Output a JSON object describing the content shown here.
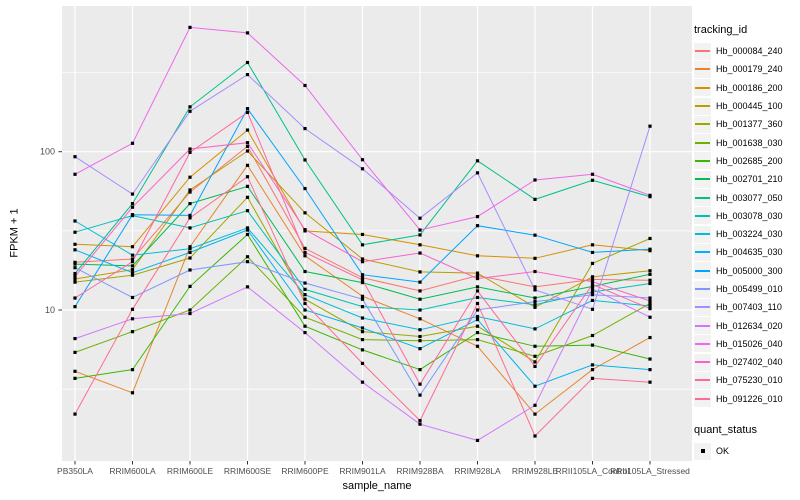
{
  "figure": {
    "x_axis": {
      "title": "sample_name"
    },
    "y_axis": {
      "title": "FPKM + 1",
      "tick_labels": [
        "100",
        "10"
      ],
      "tick_values": [
        100,
        10
      ]
    },
    "legend": {
      "color_title": "tracking_id",
      "shape_title": "quant_status",
      "shape_items": [
        {
          "label": "OK",
          "shape": "filled-square",
          "color": "#000000"
        }
      ]
    }
  },
  "chart_data": {
    "type": "line",
    "title": "",
    "xlabel": "sample_name",
    "ylabel": "FPKM + 1",
    "yscale": "log10",
    "ylim": [
      1.3,
      700
    ],
    "grid": "on",
    "legend_position": "right",
    "point_shape": "filled-square",
    "point_color": "#000000",
    "panel_background": "#EBEBEB",
    "grid_color": "#FFFFFF",
    "tick_label_color": "#4D4D4D",
    "major_gridlines": [
      10,
      100
    ],
    "minor_gridlines": [
      3.162,
      31.62,
      316.23
    ],
    "x_categories": [
      "PB350LA",
      "RRIM600LA",
      "RRIM600LE",
      "RRIM600SE",
      "RRIM600PE",
      "RRIM901LA",
      "RRIM928BA",
      "RRIM928LA",
      "RRIM928LE",
      "RRII105LA_Control",
      "RRII105LA_Stressed"
    ],
    "series": [
      {
        "name": "Hb_000084_240",
        "color": "#F8766D",
        "values": [
          20,
          21,
          55.6,
          108,
          24.5,
          16,
          13.2,
          16.5,
          14,
          15.6,
          15.4
        ]
      },
      {
        "name": "Hb_000179_240",
        "color": "#E9842C",
        "values": [
          4.1,
          3.0,
          25.1,
          82,
          22,
          12.2,
          8.8,
          5.9,
          2.2,
          4.2,
          6.7
        ]
      },
      {
        "name": "Hb_000186_200",
        "color": "#D69100",
        "values": [
          26,
          25.1,
          69,
          137,
          31.6,
          30,
          25.8,
          22,
          21.2,
          25.8,
          23.7
        ]
      },
      {
        "name": "Hb_000445_100",
        "color": "#BB9D00",
        "values": [
          15.7,
          18,
          57.3,
          101,
          41.1,
          21,
          17.4,
          17.1,
          10.4,
          16.2,
          17.7
        ]
      },
      {
        "name": "Hb_001377_360",
        "color": "#9DA700",
        "values": [
          15,
          16.6,
          21.3,
          51.5,
          11.7,
          7.3,
          6.8,
          7.9,
          4.7,
          19.7,
          28.3
        ]
      },
      {
        "name": "Hb_001638_030",
        "color": "#6FB000",
        "values": [
          5.4,
          7.3,
          10,
          21.7,
          9,
          6.5,
          6.4,
          6.5,
          5.1,
          6.9,
          11
        ]
      },
      {
        "name": "Hb_002685_200",
        "color": "#39B600",
        "values": [
          3.7,
          4.2,
          14.1,
          30,
          7.9,
          5.6,
          4.2,
          7.2,
          5.9,
          6,
          4.9
        ]
      },
      {
        "name": "Hb_002701_210",
        "color": "#00BC51",
        "values": [
          19.5,
          19,
          47,
          60.4,
          17.5,
          14.9,
          11.7,
          14,
          11.9,
          14.1,
          16.8
        ]
      },
      {
        "name": "Hb_003077_050",
        "color": "#00C08B",
        "values": [
          17,
          47,
          192,
          366,
          88.7,
          25.8,
          29.8,
          87.6,
          50,
          66,
          52
        ]
      },
      {
        "name": "Hb_003078_030",
        "color": "#00C0B5",
        "values": [
          31,
          39.5,
          33,
          42.4,
          13.5,
          10.5,
          10,
          12,
          10.8,
          13,
          14.7
        ]
      },
      {
        "name": "Hb_003224_030",
        "color": "#00BCD8",
        "values": [
          36.5,
          22.2,
          24.4,
          33,
          12.5,
          8.9,
          7.5,
          9.1,
          7.6,
          11.5,
          10.6
        ]
      },
      {
        "name": "Hb_004635_030",
        "color": "#00B3F2",
        "values": [
          24,
          17.2,
          23.1,
          32,
          10,
          7.7,
          5.7,
          8.7,
          3.3,
          4.5,
          4.2
        ]
      },
      {
        "name": "Hb_005000_300",
        "color": "#00A3FF",
        "values": [
          10.5,
          40,
          39.6,
          187,
          58.5,
          16.7,
          15,
          34.1,
          29.7,
          23.1,
          24.2
        ]
      },
      {
        "name": "Hb_005499_010",
        "color": "#7F96FF",
        "values": [
          18.5,
          12,
          17.9,
          20.2,
          14.8,
          11.7,
          2.9,
          10,
          11.3,
          12.5,
          11.9
        ]
      },
      {
        "name": "Hb_007403_110",
        "color": "#A98BFF",
        "values": [
          93,
          54,
          180,
          307,
          140,
          78,
          38,
          73.5,
          13.4,
          10.1,
          145
        ]
      },
      {
        "name": "Hb_012634_020",
        "color": "#D177FE",
        "values": [
          6.6,
          8.8,
          9.5,
          14,
          7.2,
          3.5,
          1.9,
          1.5,
          2.5,
          13.6,
          9
        ]
      },
      {
        "name": "Hb_015026_040",
        "color": "#EF67EB",
        "values": [
          72,
          113,
          610,
          563,
          262,
          89,
          32,
          38.9,
          66.3,
          72,
          53
        ]
      },
      {
        "name": "Hb_027402_040",
        "color": "#FD61C6",
        "values": [
          16.3,
          44.6,
          104,
          114,
          32.2,
          20.2,
          22.9,
          15.8,
          17.5,
          15.1,
          11.4
        ]
      },
      {
        "name": "Hb_075230_010",
        "color": "#FF66A2",
        "values": [
          11.9,
          20.2,
          99,
          177,
          23.1,
          15.5,
          3.4,
          13.2,
          4.4,
          14.5,
          10.2
        ]
      },
      {
        "name": "Hb_091226_010",
        "color": "#FF6C91",
        "values": [
          2.2,
          10.1,
          38.2,
          69.5,
          11,
          4.6,
          2,
          11,
          1.6,
          3.7,
          3.5
        ]
      }
    ]
  }
}
